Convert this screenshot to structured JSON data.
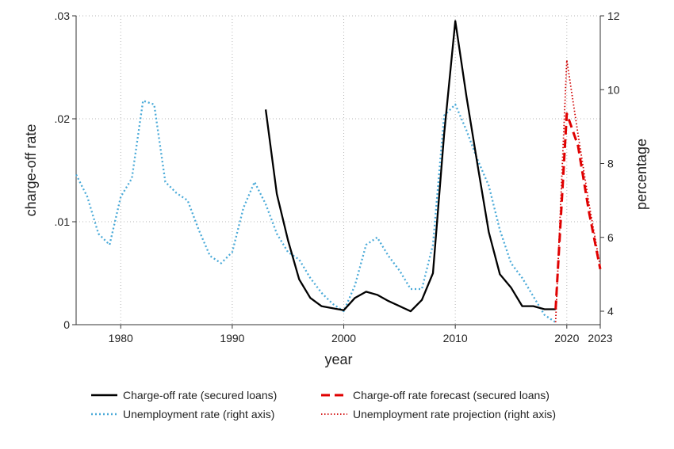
{
  "chart_data": {
    "type": "line",
    "xlabel": "year",
    "ylabel_left": "charge-off rate",
    "ylabel_right": "percentage",
    "xlim": [
      1976,
      2023
    ],
    "ylim_left": [
      0,
      0.03
    ],
    "ylim_right": [
      3.7,
      12
    ],
    "x_ticks": [
      1980,
      1990,
      2000,
      2010,
      2020,
      2023
    ],
    "x_tick_labels": [
      "1980",
      "1990",
      "2000",
      "2010",
      "2020",
      "2023"
    ],
    "y_left_ticks": [
      0,
      0.01,
      0.02,
      0.03
    ],
    "y_left_tick_labels": [
      "0",
      ".01",
      ".02",
      ".03"
    ],
    "y_right_ticks": [
      4,
      6,
      8,
      10,
      12
    ],
    "y_right_tick_labels": [
      "4",
      "6",
      "8",
      "10",
      "12"
    ],
    "grid": true,
    "legend_position": "bottom",
    "series": [
      {
        "name": "Charge-off rate (secured loans)",
        "axis": "left",
        "color": "#000000",
        "style": "solid",
        "x": [
          1993,
          1994,
          1995,
          1996,
          1997,
          1998,
          1999,
          2000,
          2001,
          2002,
          2003,
          2004,
          2005,
          2006,
          2007,
          2008,
          2009,
          2010,
          2011,
          2012,
          2013,
          2014,
          2015,
          2016,
          2017,
          2018,
          2019
        ],
        "y": [
          0.0209,
          0.0127,
          0.0082,
          0.0044,
          0.0026,
          0.0018,
          0.0016,
          0.0014,
          0.0026,
          0.0032,
          0.0029,
          0.0023,
          0.0018,
          0.0013,
          0.0024,
          0.005,
          0.0185,
          0.0295,
          0.0222,
          0.0155,
          0.009,
          0.0049,
          0.0036,
          0.0018,
          0.0018,
          0.0015,
          0.0015
        ]
      },
      {
        "name": "Unemployment rate (right axis)",
        "axis": "right",
        "color": "#4aaad8",
        "style": "dotted",
        "x": [
          1976,
          1977,
          1978,
          1979,
          1980,
          1981,
          1982,
          1983,
          1984,
          1985,
          1986,
          1987,
          1988,
          1989,
          1990,
          1991,
          1992,
          1993,
          1994,
          1995,
          1996,
          1997,
          1998,
          1999,
          2000,
          2001,
          2002,
          2003,
          2004,
          2005,
          2006,
          2007,
          2008,
          2009,
          2010,
          2011,
          2012,
          2013,
          2014,
          2015,
          2016,
          2017,
          2018,
          2019
        ],
        "y": [
          7.7,
          7.1,
          6.1,
          5.8,
          7.1,
          7.6,
          9.7,
          9.6,
          7.5,
          7.2,
          7.0,
          6.2,
          5.5,
          5.3,
          5.6,
          6.8,
          7.5,
          6.9,
          6.1,
          5.6,
          5.4,
          4.9,
          4.5,
          4.2,
          4.0,
          4.7,
          5.8,
          6.0,
          5.5,
          5.1,
          4.6,
          4.6,
          5.8,
          9.3,
          9.6,
          8.9,
          8.1,
          7.4,
          6.2,
          5.3,
          4.9,
          4.4,
          3.9,
          3.7
        ]
      },
      {
        "name": "Charge-off rate forecast (secured loans)",
        "axis": "left",
        "color": "#e00000",
        "style": "dashed",
        "x": [
          2019,
          2020,
          2021,
          2022,
          2023
        ],
        "y": [
          0.0015,
          0.0205,
          0.0174,
          0.0109,
          0.0054
        ]
      },
      {
        "name": "Unemployment rate projection (right axis)",
        "axis": "right",
        "color": "#d00000",
        "style": "dotted",
        "x": [
          2019,
          2020,
          2021,
          2022,
          2023
        ],
        "y": [
          3.7,
          10.8,
          8.8,
          6.9,
          5.2
        ]
      }
    ]
  }
}
